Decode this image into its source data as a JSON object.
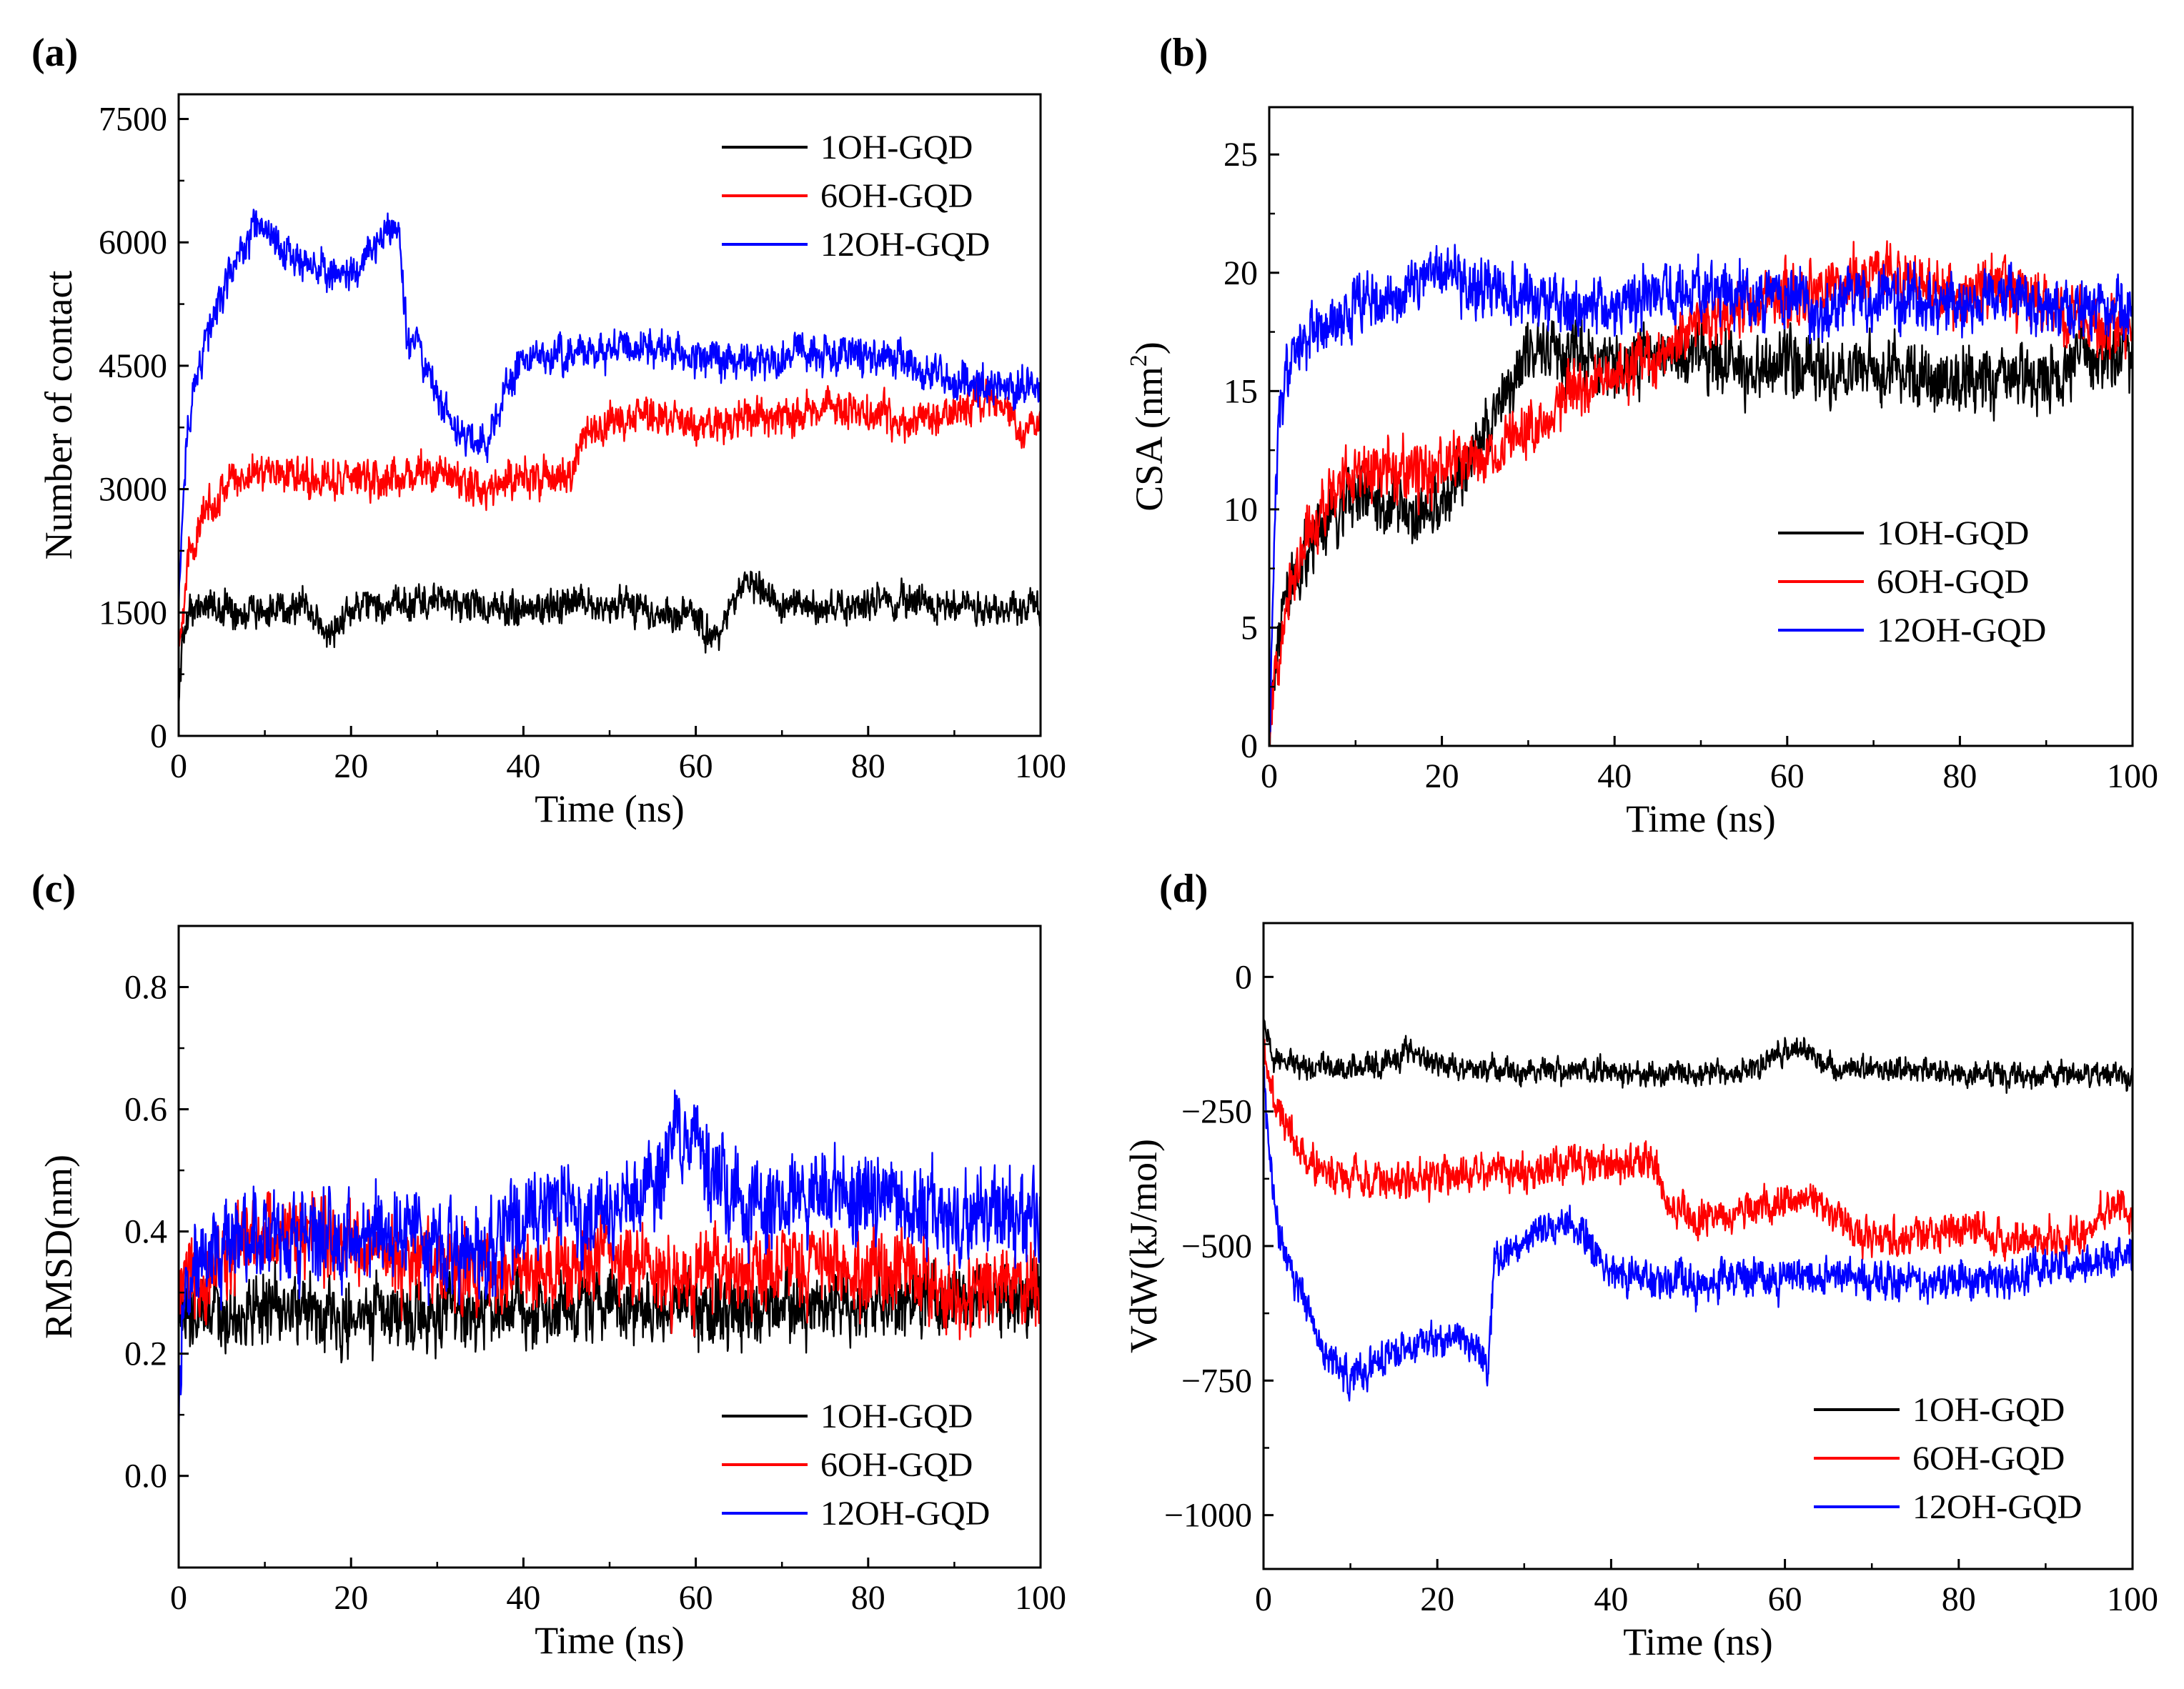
{
  "panels": [
    {
      "label": "(a)",
      "xlabel": "Time (ns)",
      "ylabel": "Number of contact",
      "ylabel_sup": "",
      "ylabel_tail": "",
      "xlim": [
        0,
        100
      ],
      "ylim": [
        0,
        7800
      ],
      "xticks": [
        0,
        20,
        40,
        60,
        80,
        100
      ],
      "yticks": [
        0,
        1500,
        3000,
        4500,
        6000,
        7500
      ],
      "legend_position": "top-right"
    },
    {
      "label": "(b)",
      "xlabel": "Time (ns)",
      "ylabel": "CSA (nm",
      "ylabel_sup": "2",
      "ylabel_tail": ")",
      "xlim": [
        0,
        100
      ],
      "ylim": [
        0,
        27
      ],
      "xticks": [
        0,
        20,
        40,
        60,
        80,
        100
      ],
      "yticks": [
        0,
        5,
        10,
        15,
        20,
        25
      ],
      "legend_position": "center-right"
    },
    {
      "label": "(c)",
      "xlabel": "Time (ns)",
      "ylabel": "RMSD(nm)",
      "ylabel_sup": "",
      "ylabel_tail": "",
      "xlim": [
        0,
        100
      ],
      "ylim": [
        -0.15,
        0.9
      ],
      "xticks": [
        0,
        20,
        40,
        60,
        80,
        100
      ],
      "yticks": [
        0.0,
        0.2,
        0.4,
        0.6,
        0.8
      ],
      "legend_position": "bottom-right"
    },
    {
      "label": "(d)",
      "xlabel": "Time (ns)",
      "ylabel": "VdW(kJ/mol)",
      "ylabel_sup": "",
      "ylabel_tail": "",
      "xlim": [
        0,
        100
      ],
      "ylim": [
        -1100,
        100
      ],
      "xticks": [
        0,
        20,
        40,
        60,
        80,
        100
      ],
      "yticks": [
        -1000,
        -750,
        -500,
        -250,
        0
      ],
      "legend_position": "bottom-right"
    }
  ],
  "chart_data": [
    {
      "type": "line",
      "xlabel": "Time (ns)",
      "ylabel": "Number of contact",
      "xlim": [
        0,
        100
      ],
      "ylim": [
        0,
        7800
      ],
      "series": [
        {
          "name": "1OH-GQD",
          "color": "#000000",
          "x": [
            0,
            0.5,
            2,
            5,
            10,
            15,
            17,
            20,
            25,
            30,
            35,
            40,
            45,
            50,
            55,
            60,
            62,
            66,
            70,
            75,
            80,
            85,
            90,
            95,
            100
          ],
          "y": [
            400,
            1300,
            1600,
            1550,
            1500,
            1600,
            1200,
            1550,
            1600,
            1650,
            1550,
            1500,
            1650,
            1600,
            1500,
            1450,
            1150,
            1850,
            1600,
            1550,
            1600,
            1650,
            1600,
            1550,
            1600
          ],
          "noise": 180
        },
        {
          "name": "6OH-GQD",
          "color": "#ff0000",
          "x": [
            0,
            1,
            3,
            6,
            10,
            15,
            20,
            25,
            30,
            35,
            40,
            45,
            47,
            50,
            55,
            60,
            65,
            70,
            75,
            80,
            85,
            90,
            95,
            98,
            100
          ],
          "y": [
            1100,
            2100,
            2700,
            3100,
            3250,
            3150,
            3100,
            3150,
            3200,
            3000,
            3150,
            3100,
            3650,
            3800,
            3900,
            3750,
            3850,
            3900,
            4000,
            3950,
            3850,
            3950,
            4100,
            3700,
            3900
          ],
          "noise": 200
        },
        {
          "name": "12OH-GQD",
          "color": "#0000ff",
          "x": [
            0,
            1,
            3,
            6,
            9,
            12,
            16,
            20,
            24,
            25.5,
            26.5,
            28,
            30,
            32,
            36,
            38,
            40,
            45,
            50,
            55,
            60,
            65,
            70,
            75,
            80,
            85,
            90,
            95,
            100
          ],
          "y": [
            1600,
            3800,
            4800,
            5600,
            6200,
            5900,
            5700,
            5600,
            6100,
            6300,
            4800,
            4700,
            4200,
            3700,
            3600,
            4200,
            4600,
            4650,
            4700,
            4750,
            4600,
            4550,
            4600,
            4650,
            4650,
            4500,
            4300,
            4250,
            4200
          ],
          "noise": 200
        }
      ]
    },
    {
      "type": "line",
      "xlabel": "Time (ns)",
      "ylabel": "CSA (nm2)",
      "xlim": [
        0,
        100
      ],
      "ylim": [
        0,
        27
      ],
      "series": [
        {
          "name": "1OH-GQD",
          "color": "#000000",
          "x": [
            0,
            0.5,
            1,
            2,
            4,
            6,
            8,
            10,
            14,
            18,
            22,
            25,
            28,
            30,
            33,
            36,
            40,
            45,
            50,
            55,
            60,
            65,
            70,
            75,
            80,
            85,
            90,
            95,
            100
          ],
          "y": [
            0,
            3,
            5,
            6.5,
            8,
            9,
            10,
            10.5,
            10,
            9.5,
            11.5,
            13,
            15.5,
            16,
            17,
            16.5,
            16,
            16.5,
            16.5,
            16,
            16,
            15.5,
            16,
            15.5,
            15.5,
            15.5,
            15.5,
            16.5,
            16.5
          ],
          "noise": 1.2
        },
        {
          "name": "6OH-GQD",
          "color": "#ff0000",
          "x": [
            0,
            0.5,
            1,
            2,
            4,
            6,
            8,
            10,
            14,
            18,
            22,
            25,
            28,
            30,
            35,
            40,
            45,
            50,
            55,
            60,
            65,
            70,
            75,
            80,
            85,
            90,
            95,
            100
          ],
          "y": [
            0,
            2,
            4,
            6.5,
            8.5,
            10,
            11,
            11.5,
            11.5,
            11.5,
            12,
            12,
            13,
            13.5,
            15,
            15.5,
            16.5,
            18,
            18.5,
            19,
            19.5,
            20,
            19.5,
            19,
            19.5,
            18.5,
            18,
            17.5
          ],
          "noise": 1.1
        },
        {
          "name": "12OH-GQD",
          "color": "#0000ff",
          "x": [
            0,
            0.5,
            1,
            2,
            4,
            6,
            10,
            14,
            18,
            20,
            25,
            30,
            35,
            40,
            45,
            50,
            55,
            60,
            65,
            70,
            75,
            80,
            85,
            90,
            95,
            100
          ],
          "y": [
            0,
            8,
            13,
            16,
            17,
            17.5,
            18.5,
            19,
            19.5,
            20,
            19.5,
            19,
            18.5,
            18.5,
            19,
            19.5,
            19,
            19,
            18.5,
            19,
            19,
            18.5,
            19,
            18.5,
            18.5,
            18.5
          ],
          "noise": 1.1
        }
      ]
    },
    {
      "type": "line",
      "xlabel": "Time (ns)",
      "ylabel": "RMSD(nm)",
      "xlim": [
        0,
        100
      ],
      "ylim": [
        -0.15,
        0.9
      ],
      "series": [
        {
          "name": "1OH-GQD",
          "color": "#000000",
          "x": [
            0,
            1,
            3,
            5,
            10,
            15,
            20,
            25,
            30,
            35,
            40,
            45,
            50,
            55,
            60,
            65,
            70,
            75,
            80,
            85,
            90,
            95,
            100
          ],
          "y": [
            0.3,
            0.25,
            0.27,
            0.26,
            0.28,
            0.27,
            0.26,
            0.27,
            0.26,
            0.27,
            0.28,
            0.27,
            0.27,
            0.28,
            0.27,
            0.27,
            0.28,
            0.27,
            0.28,
            0.29,
            0.3,
            0.3,
            0.29
          ],
          "noise": 0.05
        },
        {
          "name": "6OH-GQD",
          "color": "#ff0000",
          "x": [
            0,
            1,
            3,
            5,
            10,
            15,
            20,
            25,
            30,
            35,
            40,
            45,
            50,
            55,
            60,
            65,
            70,
            75,
            80,
            85,
            90,
            95,
            100
          ],
          "y": [
            0.33,
            0.3,
            0.33,
            0.35,
            0.4,
            0.39,
            0.38,
            0.36,
            0.35,
            0.33,
            0.33,
            0.34,
            0.36,
            0.33,
            0.32,
            0.34,
            0.33,
            0.35,
            0.34,
            0.33,
            0.3,
            0.32,
            0.3
          ],
          "noise": 0.06
        },
        {
          "name": "12OH-GQD",
          "color": "#0000ff",
          "x": [
            0,
            0.5,
            2,
            5,
            10,
            15,
            20,
            25,
            30,
            35,
            40,
            45,
            50,
            55,
            58,
            62,
            65,
            70,
            75,
            80,
            85,
            90,
            95,
            100
          ],
          "y": [
            0.05,
            0.3,
            0.35,
            0.38,
            0.4,
            0.4,
            0.4,
            0.4,
            0.38,
            0.37,
            0.42,
            0.45,
            0.42,
            0.45,
            0.58,
            0.5,
            0.45,
            0.44,
            0.47,
            0.46,
            0.44,
            0.42,
            0.43,
            0.42
          ],
          "noise": 0.065
        }
      ]
    },
    {
      "type": "line",
      "xlabel": "Time (ns)",
      "ylabel": "VdW(kJ/mol)",
      "xlim": [
        0,
        100
      ],
      "ylim": [
        -1100,
        100
      ],
      "series": [
        {
          "name": "1OH-GQD",
          "color": "#000000",
          "x": [
            0,
            1,
            3,
            5,
            10,
            15,
            17,
            20,
            25,
            30,
            35,
            40,
            45,
            50,
            55,
            58,
            60,
            62,
            65,
            70,
            75,
            80,
            85,
            90,
            95,
            100
          ],
          "y": [
            -80,
            -150,
            -165,
            -170,
            -165,
            -160,
            -130,
            -165,
            -170,
            -175,
            -175,
            -175,
            -180,
            -180,
            -175,
            -160,
            -140,
            -135,
            -170,
            -175,
            -170,
            -180,
            -185,
            -180,
            -180,
            -185
          ],
          "noise": 20
        },
        {
          "name": "6OH-GQD",
          "color": "#ff0000",
          "x": [
            0,
            1,
            3,
            5,
            8,
            10,
            15,
            20,
            25,
            30,
            35,
            40,
            45,
            47,
            50,
            55,
            60,
            65,
            68,
            70,
            75,
            80,
            85,
            90,
            95,
            98,
            100
          ],
          "y": [
            -120,
            -220,
            -300,
            -340,
            -360,
            -370,
            -380,
            -370,
            -360,
            -360,
            -350,
            -350,
            -350,
            -440,
            -450,
            -440,
            -420,
            -430,
            -480,
            -490,
            -480,
            -470,
            -480,
            -490,
            -470,
            -420,
            -460
          ],
          "noise": 30
        },
        {
          "name": "12OH-GQD",
          "color": "#0000ff",
          "x": [
            0,
            1,
            2,
            4,
            6,
            8,
            10,
            14,
            18,
            22,
            25,
            25.8,
            26.5,
            28,
            30,
            33,
            36,
            38,
            40,
            45,
            50,
            55,
            60,
            65,
            70,
            75,
            80,
            85,
            90,
            95,
            100
          ],
          "y": [
            -180,
            -400,
            -500,
            -580,
            -650,
            -720,
            -740,
            -700,
            -680,
            -670,
            -690,
            -740,
            -540,
            -520,
            -490,
            -470,
            -460,
            -500,
            -550,
            -560,
            -570,
            -560,
            -560,
            -550,
            -560,
            -570,
            -560,
            -560,
            -540,
            -530,
            -520
          ],
          "noise": 30
        }
      ]
    }
  ]
}
